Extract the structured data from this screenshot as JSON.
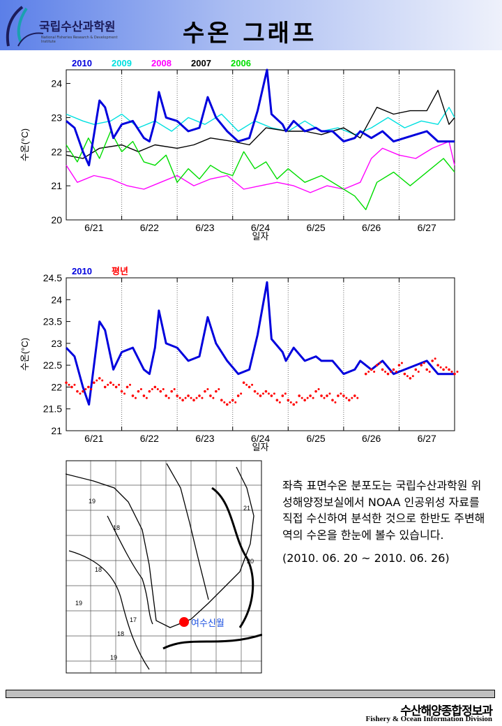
{
  "header": {
    "logo_kr": "국립수산과학원",
    "logo_en": "National Fisheries Research & Development Institute",
    "title": "수온 그래프"
  },
  "colors": {
    "2010": "#0000dd",
    "2009": "#00e0e0",
    "2008": "#ff00ff",
    "2007": "#000000",
    "2006": "#00dd00",
    "normal": "#ff0000"
  },
  "chart_data": [
    {
      "type": "line",
      "ylabel": "수온(°C)",
      "xlabel": "일자",
      "xlim": [
        21,
        28
      ],
      "ylim": [
        20,
        24.4
      ],
      "yticks": [
        20,
        21,
        22,
        23,
        24
      ],
      "xticks": [
        "6/21",
        "6/22",
        "6/23",
        "6/24",
        "6/25",
        "6/26",
        "6/27"
      ],
      "series": [
        {
          "name": "2009",
          "color": "#00e0e0",
          "x": [
            21,
            21.3,
            21.5,
            21.8,
            22.0,
            22.3,
            22.6,
            22.9,
            23.2,
            23.5,
            23.8,
            24.1,
            24.4,
            24.7,
            25.0,
            25.3,
            25.6,
            25.9,
            26.2,
            26.5,
            26.8,
            27.1,
            27.4,
            27.7,
            27.9,
            28
          ],
          "y": [
            23.1,
            22.9,
            22.8,
            22.9,
            23.1,
            22.7,
            22.9,
            22.6,
            23.0,
            22.8,
            23.1,
            22.6,
            22.9,
            22.7,
            22.6,
            22.9,
            22.6,
            22.7,
            22.5,
            22.7,
            23.0,
            22.7,
            22.9,
            22.8,
            23.3,
            23.0
          ]
        },
        {
          "name": "2008",
          "color": "#ff00ff",
          "x": [
            21,
            21.2,
            21.5,
            21.8,
            22.1,
            22.4,
            22.7,
            23.0,
            23.3,
            23.6,
            23.9,
            24.2,
            24.5,
            24.8,
            25.1,
            25.4,
            25.7,
            26.0,
            26.3,
            26.5,
            26.7,
            27.0,
            27.3,
            27.6,
            27.9,
            28
          ],
          "y": [
            21.6,
            21.1,
            21.3,
            21.2,
            21.0,
            20.9,
            21.1,
            21.3,
            21.0,
            21.2,
            21.3,
            20.9,
            21.0,
            21.1,
            21.0,
            20.8,
            21.0,
            20.9,
            21.1,
            21.8,
            22.1,
            21.9,
            21.8,
            22.1,
            22.3,
            21.6
          ]
        },
        {
          "name": "2007",
          "color": "#000000",
          "x": [
            21,
            21.3,
            21.6,
            22.0,
            22.3,
            22.6,
            23.0,
            23.3,
            23.6,
            24.0,
            24.3,
            24.6,
            25.0,
            25.3,
            25.6,
            26.0,
            26.3,
            26.6,
            26.9,
            27.2,
            27.5,
            27.7,
            27.9,
            28
          ],
          "y": [
            21.9,
            21.8,
            22.1,
            22.2,
            22.0,
            22.2,
            22.1,
            22.2,
            22.4,
            22.3,
            22.2,
            22.7,
            22.6,
            22.6,
            22.5,
            22.7,
            22.4,
            23.3,
            23.1,
            23.2,
            23.2,
            23.8,
            22.8,
            23.0
          ]
        },
        {
          "name": "2006",
          "color": "#00dd00",
          "x": [
            21,
            21.2,
            21.4,
            21.6,
            21.8,
            22.0,
            22.2,
            22.4,
            22.6,
            22.8,
            23.0,
            23.2,
            23.4,
            23.6,
            23.8,
            24.0,
            24.2,
            24.4,
            24.6,
            24.8,
            25.0,
            25.3,
            25.6,
            25.9,
            26.2,
            26.4,
            26.6,
            26.9,
            27.2,
            27.5,
            27.8,
            28
          ],
          "y": [
            22.2,
            21.7,
            22.4,
            21.8,
            22.6,
            22.0,
            22.3,
            21.7,
            21.6,
            21.9,
            21.1,
            21.5,
            21.2,
            21.6,
            21.4,
            21.3,
            22.0,
            21.5,
            21.7,
            21.2,
            21.5,
            21.1,
            21.3,
            21.0,
            20.7,
            20.3,
            21.1,
            21.4,
            21.0,
            21.4,
            21.8,
            21.4
          ]
        },
        {
          "name": "2010",
          "color": "#0000dd",
          "x": [
            21,
            21.15,
            21.3,
            21.41,
            21.5,
            21.6,
            21.7,
            21.85,
            22.0,
            22.2,
            22.4,
            22.5,
            22.6,
            22.67,
            22.8,
            23.0,
            23.2,
            23.4,
            23.55,
            23.7,
            23.9,
            24.1,
            24.3,
            24.45,
            24.62,
            24.7,
            24.9,
            24.96,
            25.1,
            25.3,
            25.5,
            25.6,
            25.8,
            26.0,
            26.2,
            26.3,
            26.5,
            26.7,
            26.9,
            27.1,
            27.3,
            27.5,
            27.7,
            28
          ],
          "y": [
            22.9,
            22.7,
            22.0,
            21.6,
            22.5,
            23.5,
            23.3,
            22.4,
            22.8,
            22.9,
            22.4,
            22.3,
            22.9,
            23.75,
            23.0,
            22.9,
            22.6,
            22.7,
            23.6,
            23.0,
            22.6,
            22.3,
            22.4,
            23.2,
            24.4,
            23.1,
            22.8,
            22.6,
            22.9,
            22.6,
            22.7,
            22.6,
            22.6,
            22.3,
            22.4,
            22.6,
            22.4,
            22.6,
            22.3,
            22.4,
            22.5,
            22.6,
            22.3,
            22.3
          ]
        }
      ],
      "legend": [
        "2010",
        "2009",
        "2008",
        "2007",
        "2006"
      ]
    },
    {
      "type": "scatter",
      "ylabel": "수온(°C)",
      "xlabel": "일자",
      "xlim": [
        21,
        28
      ],
      "ylim": [
        21,
        24.5
      ],
      "yticks": [
        21,
        21.5,
        22,
        22.5,
        23,
        23.5,
        24,
        24.5
      ],
      "xticks": [
        "6/21",
        "6/22",
        "6/23",
        "6/24",
        "6/25",
        "6/26",
        "6/27"
      ],
      "series": [
        {
          "name": "2010",
          "style": "line",
          "color": "#0000dd",
          "x": [
            21,
            21.15,
            21.3,
            21.41,
            21.5,
            21.6,
            21.7,
            21.85,
            22.0,
            22.2,
            22.4,
            22.5,
            22.6,
            22.67,
            22.8,
            23.0,
            23.2,
            23.4,
            23.55,
            23.7,
            23.9,
            24.1,
            24.3,
            24.45,
            24.62,
            24.7,
            24.9,
            24.96,
            25.1,
            25.3,
            25.5,
            25.6,
            25.8,
            26.0,
            26.2,
            26.3,
            26.5,
            26.7,
            26.9,
            27.1,
            27.3,
            27.5,
            27.7,
            28
          ],
          "y": [
            22.9,
            22.7,
            22.0,
            21.6,
            22.5,
            23.5,
            23.3,
            22.4,
            22.8,
            22.9,
            22.4,
            22.3,
            22.9,
            23.75,
            23.0,
            22.9,
            22.6,
            22.7,
            23.6,
            23.0,
            22.6,
            22.3,
            22.4,
            23.2,
            24.4,
            23.1,
            22.8,
            22.6,
            22.9,
            22.6,
            22.7,
            22.6,
            22.6,
            22.3,
            22.4,
            22.6,
            22.4,
            22.6,
            22.3,
            22.4,
            22.5,
            22.6,
            22.3,
            22.3
          ]
        },
        {
          "name": "평년",
          "style": "dots",
          "color": "#ff0000",
          "x": [
            21.0,
            21.1,
            21.2,
            21.3,
            21.4,
            21.5,
            21.6,
            21.7,
            21.8,
            21.9,
            22.0,
            22.1,
            22.2,
            22.3,
            22.4,
            22.5,
            22.6,
            22.7,
            22.8,
            22.9,
            23.0,
            23.1,
            23.2,
            23.3,
            23.4,
            23.5,
            23.6,
            23.7,
            23.8,
            23.9,
            24.0,
            24.1,
            24.2,
            24.3,
            24.4,
            24.5,
            24.6,
            24.7,
            24.8,
            24.9,
            25.0,
            25.1,
            25.2,
            25.3,
            25.4,
            25.5,
            25.6,
            25.7,
            25.8,
            25.9,
            26.0,
            26.1,
            26.2,
            26.4,
            26.5,
            26.6,
            26.7,
            26.8,
            26.9,
            27.0,
            27.1,
            27.2,
            27.3,
            27.4,
            27.5,
            27.6,
            27.7,
            27.8,
            27.9,
            28.0
          ],
          "y": [
            22.1,
            22.0,
            21.9,
            21.9,
            22.0,
            22.1,
            22.2,
            22.0,
            22.1,
            22.0,
            21.9,
            22.0,
            21.8,
            21.9,
            21.8,
            21.9,
            22.0,
            21.9,
            21.8,
            21.9,
            21.8,
            21.7,
            21.8,
            21.7,
            21.8,
            21.9,
            21.8,
            21.9,
            21.7,
            21.6,
            21.7,
            21.8,
            22.1,
            22.0,
            21.9,
            21.8,
            21.9,
            21.8,
            21.7,
            21.8,
            21.7,
            21.6,
            21.8,
            21.7,
            21.8,
            21.9,
            21.8,
            21.8,
            21.7,
            21.8,
            21.8,
            21.7,
            21.8,
            22.3,
            22.4,
            22.5,
            22.4,
            22.3,
            22.4,
            22.5,
            22.3,
            22.2,
            22.4,
            22.5,
            22.4,
            22.6,
            22.5,
            22.4,
            22.4,
            22.3
          ]
        }
      ],
      "legend": [
        "2010",
        "평년"
      ]
    }
  ],
  "map": {
    "labels": [
      "19",
      "18",
      "18",
      "19",
      "17",
      "18",
      "19",
      "21",
      "20"
    ],
    "location": "여수신월"
  },
  "description": {
    "text": "좌측 표면수온 분포도는 국립수산과학원 위성해양정보실에서 NOAA 인공위성 자료를 직접 수신하여 분석한 것으로  한반도 주변해역의 수온을 한눈에 볼수 있습니다.",
    "date": "(2010. 06. 20 ~ 2010. 06. 26)"
  },
  "footer": {
    "kr": "수산해양종합정보과",
    "en": "Fishery & Ocean Information Division"
  }
}
